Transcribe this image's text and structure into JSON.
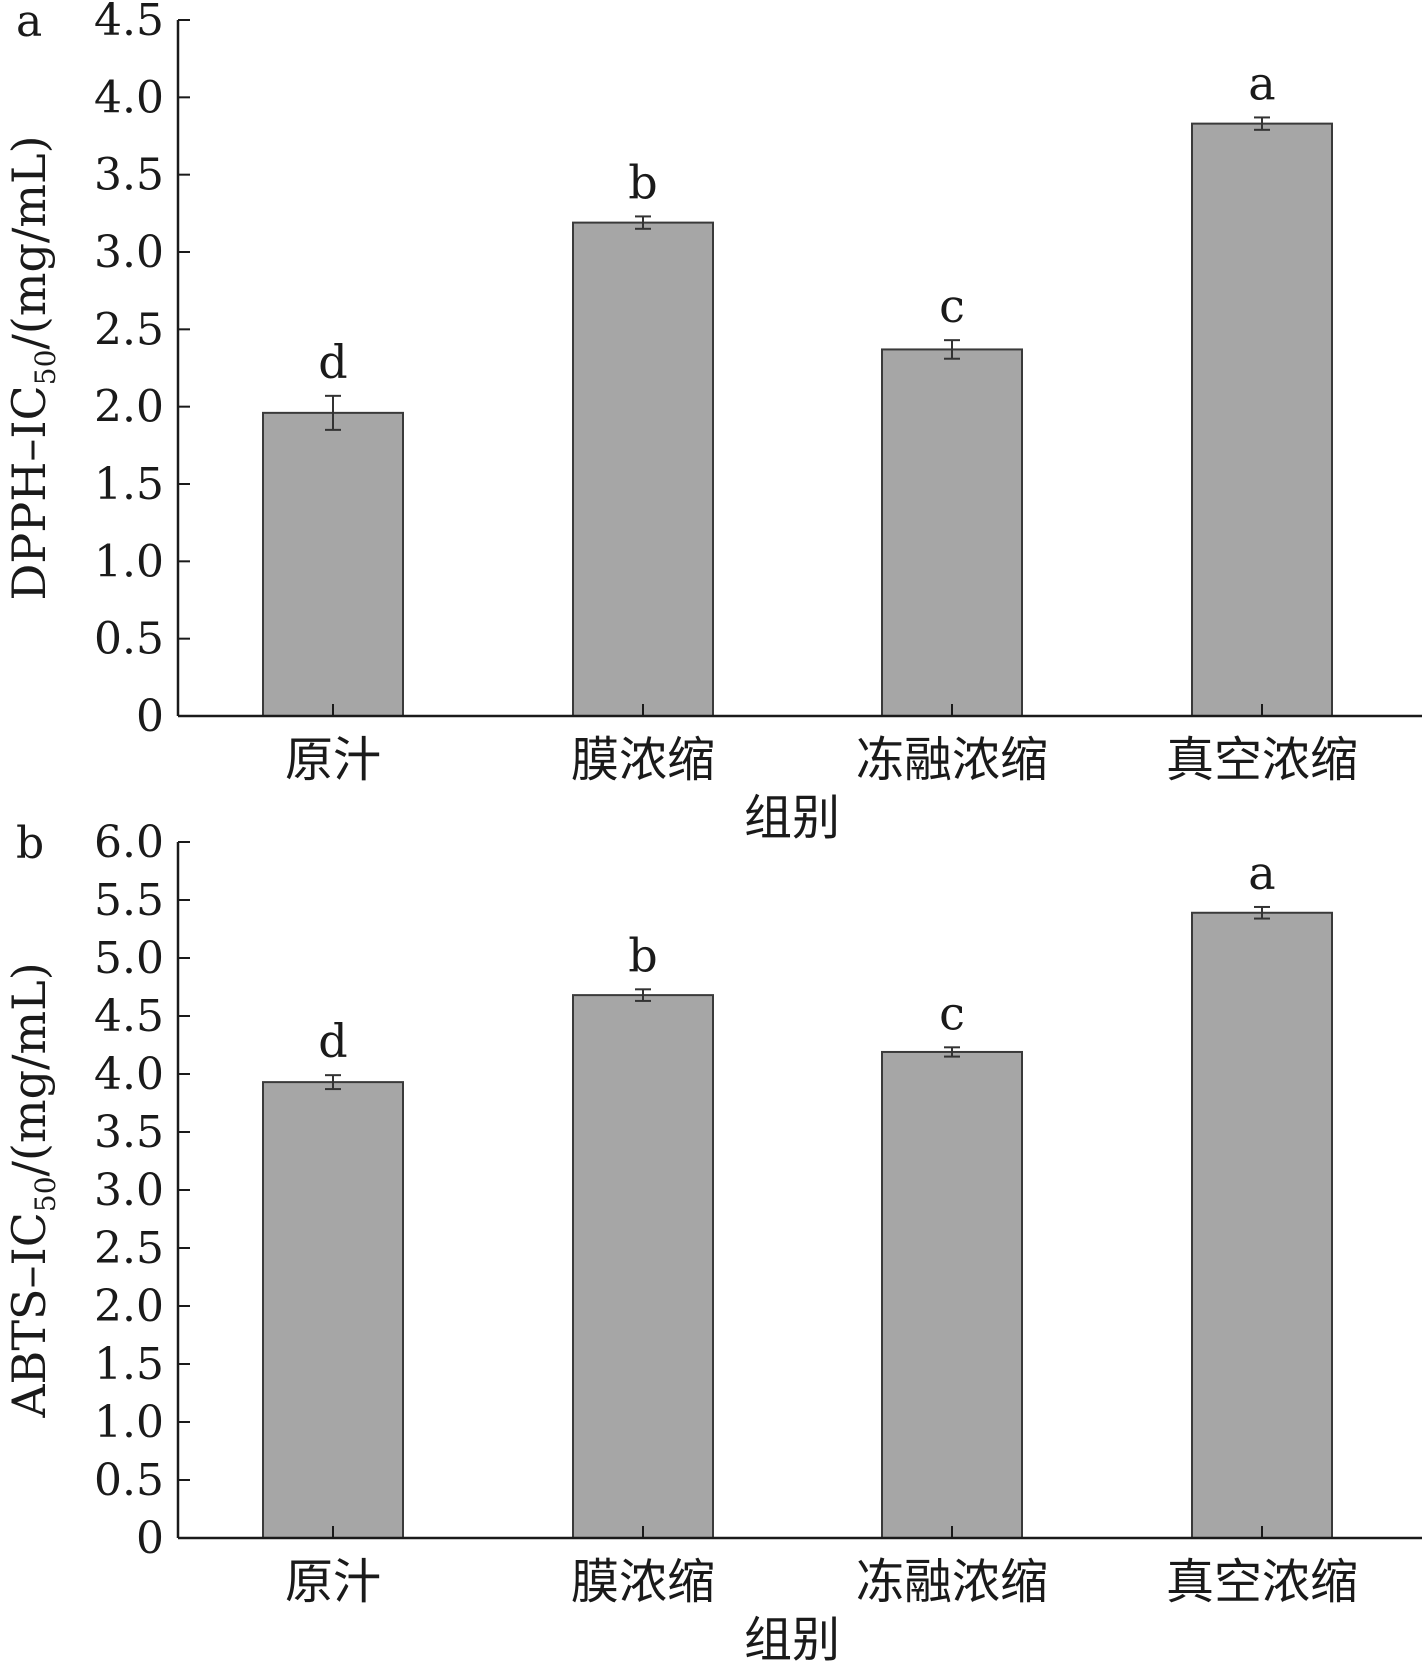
{
  "chart_data": [
    {
      "type": "bar",
      "panel_label": "a",
      "categories": [
        "原汁",
        "膜浓缩",
        "冻融浓缩",
        "真空浓缩"
      ],
      "values": [
        1.96,
        3.19,
        2.37,
        3.83
      ],
      "errors": [
        0.11,
        0.04,
        0.06,
        0.04
      ],
      "significance": [
        "d",
        "b",
        "c",
        "a"
      ],
      "title": "",
      "xlabel": "组别",
      "ylabel_main": "DPPH–IC",
      "ylabel_sub": "50",
      "ylabel_unit": "/(mg/mL)",
      "ylim": [
        0,
        4.5
      ],
      "yticks": [
        0,
        0.5,
        1.0,
        1.5,
        2.0,
        2.5,
        3.0,
        3.5,
        4.0,
        4.5
      ],
      "ytick_labels": [
        "0",
        "0.5",
        "1.0",
        "1.5",
        "2.0",
        "2.5",
        "3.0",
        "3.5",
        "4.0",
        "4.5"
      ],
      "bar_color": "#a6a6a6",
      "grid": false
    },
    {
      "type": "bar",
      "panel_label": "b",
      "categories": [
        "原汁",
        "膜浓缩",
        "冻融浓缩",
        "真空浓缩"
      ],
      "values": [
        3.93,
        4.68,
        4.19,
        5.39
      ],
      "errors": [
        0.06,
        0.05,
        0.04,
        0.05
      ],
      "significance": [
        "d",
        "b",
        "c",
        "a"
      ],
      "title": "",
      "xlabel": "组别",
      "ylabel_main": "ABTS–IC",
      "ylabel_sub": "50",
      "ylabel_unit": "/(mg/mL)",
      "ylim": [
        0,
        6.0
      ],
      "yticks": [
        0,
        0.5,
        1.0,
        1.5,
        2.0,
        2.5,
        3.0,
        3.5,
        4.0,
        4.5,
        5.0,
        5.5,
        6.0
      ],
      "ytick_labels": [
        "0",
        "0.5",
        "1.0",
        "1.5",
        "2.0",
        "2.5",
        "3.0",
        "3.5",
        "4.0",
        "4.5",
        "5.0",
        "5.5",
        "6.0"
      ],
      "bar_color": "#a6a6a6",
      "grid": false
    }
  ]
}
